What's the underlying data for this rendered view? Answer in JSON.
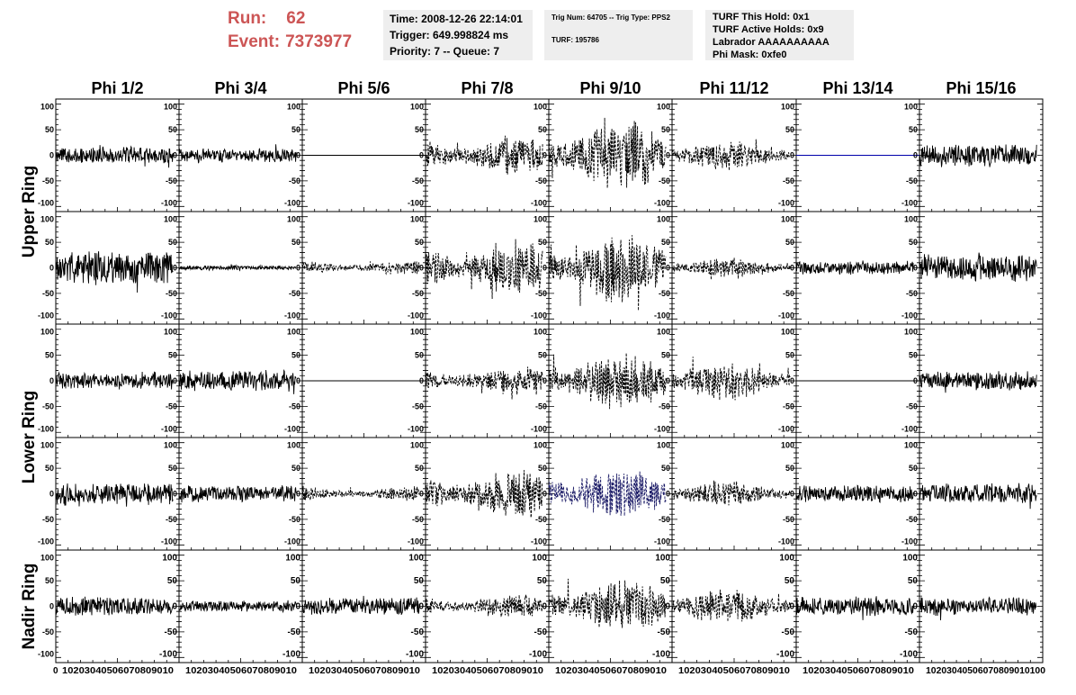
{
  "run_info": {
    "run_label": "Run:",
    "run_value": "62",
    "event_label": "Event:",
    "event_value": "7373977"
  },
  "info_box_1": [
    "Time: 2008-12-26 22:14:01",
    "Trigger: 649.998824 ms",
    "Priority: 7 -- Queue: 7"
  ],
  "info_box_2": [
    "Trig Num: 64705 -- Trig Type: PPS2",
    "TURF: 195786"
  ],
  "info_box_3": [
    "TURF This Hold: 0x1",
    "TURF Active Holds: 0x9",
    "Labrador AAAAAAAAAA",
    "Phi Mask: 0xfe0"
  ],
  "colors": {
    "run_text": "#cc5555",
    "box_bg": "#eeeeee",
    "trace": "#000000",
    "highlight_trace": "#1a1a66",
    "flat_line_highlight": "#0000aa"
  },
  "chart_data": {
    "type": "line",
    "title": "",
    "columns": [
      "Phi 1/2",
      "Phi 3/4",
      "Phi 5/6",
      "Phi 7/8",
      "Phi 9/10",
      "Phi 11/12",
      "Phi 13/14",
      "Phi 15/16"
    ],
    "row_groups": [
      "Upper Ring",
      "Lower Ring",
      "Nadir Ring"
    ],
    "rows": 5,
    "xlim": [
      0,
      100
    ],
    "ylim": [
      -110,
      110
    ],
    "y_ticks": [
      "100",
      "50",
      "0",
      "-50",
      "-100"
    ],
    "x_ticks": [
      "0",
      "10",
      "20",
      "30",
      "40",
      "50",
      "60",
      "70",
      "80",
      "90",
      "100"
    ],
    "x_axis_tick_strings": [
      "0",
      "10203040506070809010",
      "10203040506070809010",
      "10203040506070809010",
      "10203040506070809010",
      "10203040506070809010",
      "10203040506070809010",
      "10203040506070809010",
      "10203040506070809010100"
    ],
    "waveform_extent": [
      0,
      95
    ],
    "amplitude_grid": [
      [
        18,
        15,
        0,
        40,
        75,
        30,
        0,
        25
      ],
      [
        35,
        5,
        15,
        55,
        70,
        20,
        15,
        30
      ],
      [
        18,
        22,
        0,
        30,
        60,
        40,
        0,
        20
      ],
      [
        25,
        18,
        15,
        50,
        55,
        25,
        18,
        22
      ],
      [
        20,
        12,
        18,
        25,
        55,
        35,
        20,
        20
      ]
    ],
    "dashed_grid": [
      [
        false,
        false,
        false,
        true,
        true,
        true,
        false,
        false
      ],
      [
        false,
        false,
        true,
        true,
        true,
        true,
        false,
        false
      ],
      [
        false,
        false,
        false,
        true,
        true,
        true,
        false,
        false
      ],
      [
        false,
        false,
        true,
        true,
        true,
        true,
        false,
        false
      ],
      [
        false,
        false,
        false,
        true,
        true,
        true,
        false,
        false
      ]
    ],
    "highlighted_cells": [
      [
        3,
        4
      ]
    ],
    "flat_highlight_cells": [
      [
        0,
        6
      ]
    ]
  }
}
